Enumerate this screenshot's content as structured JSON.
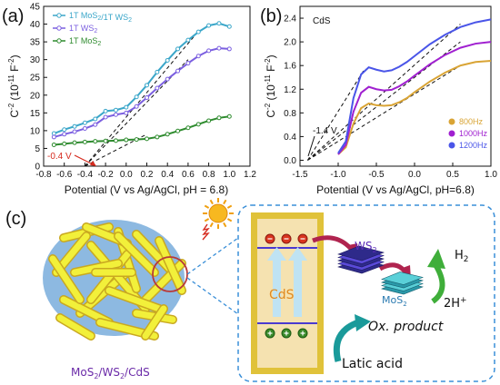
{
  "chart_data": [
    {
      "panel": "(a)",
      "type": "line",
      "xlabel": "Potential (V vs Ag/AgCl, pH = 6.8)",
      "ylabel": "C-2 (10-11 F-2)",
      "xlim": [
        -0.8,
        1.2
      ],
      "ylim": [
        0,
        45
      ],
      "xticks": [
        -0.8,
        -0.6,
        -0.4,
        -0.2,
        0.0,
        0.2,
        0.4,
        0.6,
        0.8,
        1.0,
        1.2
      ],
      "yticks": [
        0,
        5,
        10,
        15,
        20,
        25,
        30,
        35,
        40,
        45
      ],
      "legend_position": "top-left",
      "annotation": "-0.4 V",
      "series": [
        {
          "name": "1T MoS2/1T WS2",
          "color": "#3aa6c9",
          "x": [
            -0.7,
            -0.6,
            -0.5,
            -0.4,
            -0.3,
            -0.2,
            -0.1,
            0.0,
            0.1,
            0.2,
            0.3,
            0.4,
            0.5,
            0.6,
            0.7,
            0.8,
            0.9,
            1.0
          ],
          "y": [
            9.2,
            10.3,
            11.2,
            12.2,
            13.3,
            15.5,
            15.8,
            16.6,
            19.5,
            22.8,
            26.5,
            29.8,
            33.0,
            35.5,
            37.8,
            39.6,
            40.2,
            39.3
          ]
        },
        {
          "name": "1T WS2",
          "color": "#7b5fe0",
          "x": [
            -0.7,
            -0.6,
            -0.5,
            -0.4,
            -0.3,
            -0.2,
            -0.1,
            0.0,
            0.1,
            0.2,
            0.3,
            0.4,
            0.5,
            0.6,
            0.7,
            0.8,
            0.9,
            1.0
          ],
          "y": [
            8.2,
            9.0,
            9.7,
            10.6,
            11.7,
            13.8,
            14.5,
            15.0,
            16.8,
            19.3,
            22.0,
            24.5,
            26.8,
            29.0,
            31.0,
            32.5,
            33.2,
            33.0
          ]
        },
        {
          "name": "1T MoS2",
          "color": "#2e8b2e",
          "x": [
            -0.7,
            -0.6,
            -0.5,
            -0.4,
            -0.3,
            -0.2,
            -0.1,
            0.0,
            0.1,
            0.2,
            0.3,
            0.4,
            0.5,
            0.6,
            0.7,
            0.8,
            0.9,
            1.0
          ],
          "y": [
            6.0,
            6.3,
            6.6,
            6.8,
            7.0,
            7.1,
            7.2,
            7.4,
            7.5,
            7.7,
            8.2,
            9.0,
            9.9,
            10.8,
            11.8,
            12.8,
            13.6,
            14.0
          ]
        }
      ]
    },
    {
      "panel": "(b)",
      "type": "line",
      "title": "CdS",
      "xlabel": "Potential (V vs Ag/AgCl, pH=6.8)",
      "ylabel": "C-2 (10-11 F-2)",
      "xlim": [
        -1.5,
        1.0
      ],
      "ylim": [
        -0.1,
        2.6
      ],
      "xticks": [
        -1.5,
        -1.0,
        -0.5,
        0.0,
        0.5,
        1.0
      ],
      "yticks": [
        0.0,
        0.4,
        0.8,
        1.2,
        1.6,
        2.0,
        2.4
      ],
      "legend_position": "bottom-right",
      "annotation": "-1.4 V",
      "series": [
        {
          "name": "800Hz",
          "color": "#d9a435",
          "x": [
            -1.0,
            -0.9,
            -0.8,
            -0.7,
            -0.6,
            -0.5,
            -0.4,
            -0.3,
            -0.2,
            -0.1,
            0.0,
            0.2,
            0.4,
            0.6,
            0.8,
            1.0
          ],
          "y": [
            0.1,
            0.22,
            0.62,
            0.88,
            0.96,
            0.93,
            0.92,
            0.93,
            0.98,
            1.05,
            1.15,
            1.33,
            1.48,
            1.6,
            1.66,
            1.68
          ]
        },
        {
          "name": "1000Hz",
          "color": "#a020d0",
          "x": [
            -1.0,
            -0.9,
            -0.8,
            -0.7,
            -0.6,
            -0.5,
            -0.4,
            -0.3,
            -0.2,
            -0.1,
            0.0,
            0.2,
            0.4,
            0.6,
            0.8,
            1.0
          ],
          "y": [
            0.1,
            0.26,
            0.82,
            1.14,
            1.24,
            1.2,
            1.18,
            1.19,
            1.25,
            1.33,
            1.43,
            1.62,
            1.78,
            1.9,
            1.97,
            2.0
          ]
        },
        {
          "name": "1200Hz",
          "color": "#4a55e8",
          "x": [
            -1.0,
            -0.9,
            -0.8,
            -0.7,
            -0.6,
            -0.5,
            -0.4,
            -0.3,
            -0.2,
            -0.1,
            0.0,
            0.2,
            0.4,
            0.6,
            0.8,
            1.0
          ],
          "y": [
            0.12,
            0.32,
            1.05,
            1.45,
            1.57,
            1.53,
            1.5,
            1.52,
            1.58,
            1.66,
            1.76,
            1.96,
            2.12,
            2.25,
            2.33,
            2.38
          ]
        }
      ]
    }
  ],
  "schematic": {
    "panel": "(c)",
    "composite_label": "MoS2/WS2/CdS",
    "cds_label": "CdS",
    "ws2_label": "WS2",
    "mos2_label": "MoS2",
    "h2_label": "H2",
    "h_plus_label": "2H+",
    "ox_label": "Ox. product",
    "latic_label": "Latic acid",
    "colors": {
      "rod": "#f2f03a",
      "blue_rod": "#3f8fe0",
      "frame": "#e0c23a",
      "panel_fill": "#f5e2b0",
      "dashed": "#3a8fd8",
      "arrow_red": "#b0244f",
      "arrow_green": "#3fae3a",
      "arrow_teal": "#1a9a9a",
      "electron": "#d9351f",
      "hole": "#3a8a2a",
      "sun": "#f7b820"
    }
  }
}
